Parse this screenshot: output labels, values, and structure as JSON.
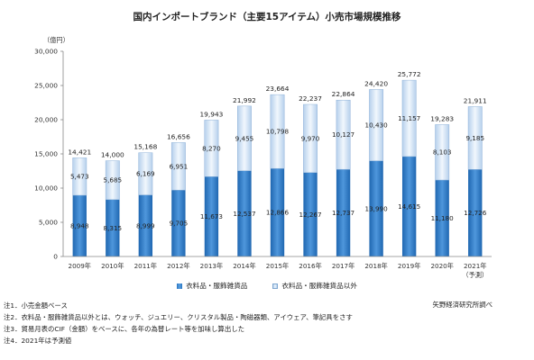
{
  "chart_data": {
    "type": "bar",
    "stacked": true,
    "title": "国内インポートブランド（主要15アイテム）小売市場規模推移",
    "ylabel": "（億円）",
    "ylim": [
      0,
      30000
    ],
    "yticks": [
      "0",
      "5,000",
      "10,000",
      "15,000",
      "20,000",
      "25,000",
      "30,000"
    ],
    "grid": false,
    "categories": [
      "2009年",
      "2010年",
      "2011年",
      "2012年",
      "2013年",
      "2014年",
      "2015年",
      "2016年",
      "2017年",
      "2018年",
      "2019年",
      "2020年",
      "2021年"
    ],
    "category_sublabels": [
      "",
      "",
      "",
      "",
      "",
      "",
      "",
      "",
      "",
      "",
      "",
      "",
      "（予測）"
    ],
    "series": [
      {
        "name": "衣料品・服飾雑貨品",
        "color": "#2f7fcf",
        "values": [
          8948,
          8315,
          8999,
          9705,
          11673,
          12537,
          12866,
          12267,
          12737,
          13990,
          14615,
          11180,
          12726
        ]
      },
      {
        "name": "衣料品・服飾雑貨品以外",
        "color": "#dbe9f8",
        "values": [
          5473,
          5685,
          6169,
          6951,
          8270,
          9455,
          10798,
          9970,
          10127,
          10430,
          11157,
          8103,
          9185
        ]
      }
    ],
    "segment_labels": [
      [
        "8,948",
        "8,315",
        "8,999",
        "9,705",
        "11,673",
        "12,537",
        "12,866",
        "12,267",
        "12,737",
        "13,990",
        "14,615",
        "11,180",
        "12,726"
      ],
      [
        "5,473",
        "5,685",
        "6,169",
        "6,951",
        "8,270",
        "9,455",
        "10,798",
        "9,970",
        "10,127",
        "10,430",
        "11,157",
        "8,103",
        "9,185"
      ]
    ],
    "totals": [
      14421,
      14000,
      15168,
      16656,
      19943,
      21992,
      23664,
      22237,
      22864,
      24420,
      25772,
      19283,
      21911
    ],
    "total_labels": [
      "14,421",
      "14,000",
      "15,168",
      "16,656",
      "19,943",
      "21,992",
      "23,664",
      "22,237",
      "22,864",
      "24,420",
      "25,772",
      "19,283",
      "21,911"
    ],
    "legend": [
      "衣料品・服飾雑貨品",
      "衣料品・服飾雑貨品以外"
    ],
    "legend_position": "bottom"
  },
  "notes": [
    "注1．小売金額ベース",
    "注2．衣料品・服飾雑貨品以外とは、ウォッチ、ジュエリー、クリスタル製品・陶磁器類、アイウェア、筆記具をさす",
    "注3．貿易月表のCIF（金額）をベースに、各年の為替レート等を加味し算出した",
    "注4．2021年は予測値"
  ],
  "source": "矢野経済研究所調べ"
}
